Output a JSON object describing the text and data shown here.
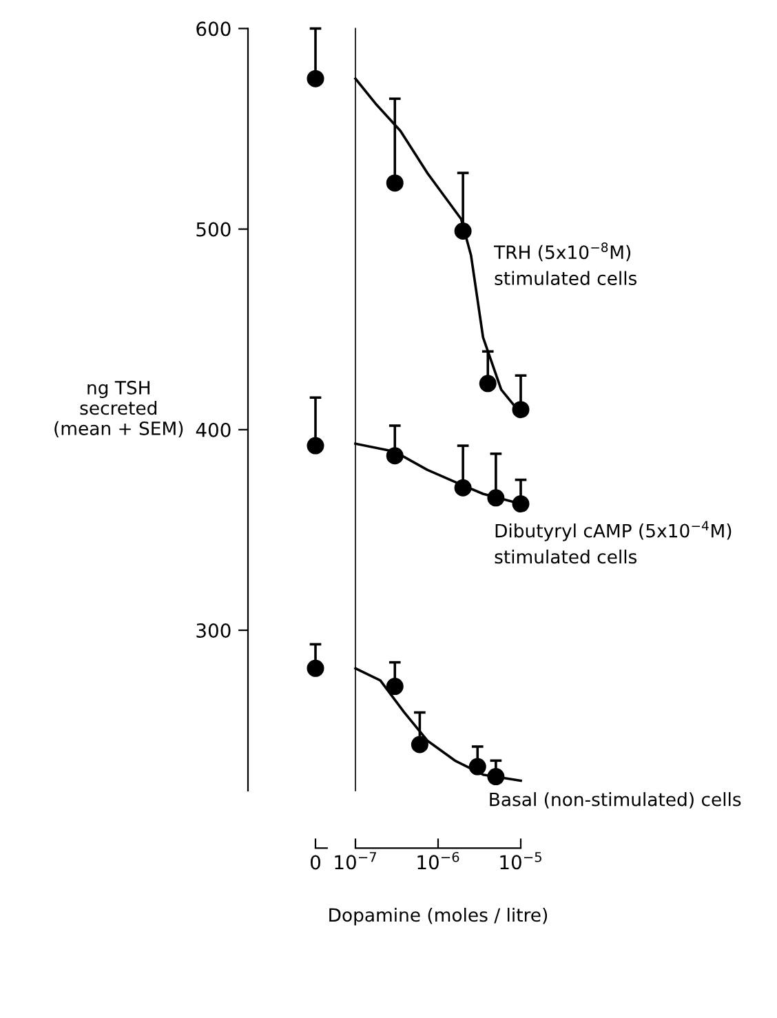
{
  "chart_data": [
    {
      "type": "scatter",
      "categories": [
        "0"
      ],
      "ylabel": "ng TSH\nsecreted\n(mean + SEM)",
      "ylim": [
        220,
        600
      ],
      "yticks": [
        300,
        400,
        500,
        600
      ],
      "marker": "circle",
      "series": [
        {
          "color": "#000000",
          "values": [
            575
          ],
          "errors": [
            [
              575,
              600
            ]
          ]
        },
        {
          "color": "#000000",
          "values": [
            392
          ],
          "errors": [
            [
              392,
              416
            ]
          ]
        },
        {
          "color": "#000000",
          "values": [
            281
          ],
          "errors": [
            [
              281,
              293
            ]
          ]
        }
      ]
    },
    {
      "type": "scatter",
      "xlabel": "Dopamine (moles / litre)",
      "log": "x",
      "xlim": [
        1e-07,
        1e-05
      ],
      "xticks": [
        {
          "value": 1e-07,
          "label": "10$^{−7}$"
        },
        {
          "value": 1e-06,
          "label": "10$^{−6}$"
        },
        {
          "value": 1e-05,
          "label": "10$^{−5}$"
        }
      ],
      "ylim": [
        220,
        600
      ],
      "yticks": [
        300,
        400,
        500,
        600
      ],
      "tick_labels": "x",
      "marker": "circle",
      "series": [
        {
          "color": "#000000",
          "x": [
            3e-07,
            2e-06,
            4e-06,
            1e-05
          ],
          "values": [
            523,
            499,
            423,
            410
          ],
          "errors": [
            [
              523,
              565
            ],
            [
              499,
              528
            ],
            [
              423,
              439
            ],
            [
              410,
              427
            ]
          ]
        },
        {
          "type": "line",
          "name": "TRH (5x10$^{−8}$M)\nstimulated cells",
          "color": "#000000",
          "marker": "none",
          "x": [
            1e-07,
            1.8e-07,
            3.5e-07,
            7.4e-07,
            1.9e-06,
            2.5e-06,
            3.5e-06,
            5.8e-06,
            1e-05
          ],
          "values": [
            575,
            562,
            549,
            528,
            505,
            487,
            446,
            420,
            408
          ]
        },
        {
          "color": "#000000",
          "x": [
            3e-07,
            2e-06,
            5e-06,
            1e-05
          ],
          "values": [
            387,
            371,
            366,
            363
          ],
          "errors": [
            [
              387,
              402
            ],
            [
              371,
              392
            ],
            [
              366,
              388
            ],
            [
              363,
              375
            ]
          ]
        },
        {
          "type": "line",
          "name": "Dibutyryl cAMP (5x10$^{−4}$M)\nstimulated cells",
          "color": "#000000",
          "marker": "none",
          "x": [
            1e-07,
            3e-07,
            7.4e-07,
            1.8e-06,
            3.5e-06,
            1e-05
          ],
          "values": [
            393,
            389,
            380,
            373,
            368,
            363
          ]
        },
        {
          "color": "#000000",
          "x": [
            3e-07,
            6e-07,
            3e-06,
            5e-06
          ],
          "values": [
            272,
            243,
            232,
            227
          ],
          "errors": [
            [
              272,
              284
            ],
            [
              243,
              259
            ],
            [
              232,
              242
            ],
            [
              227,
              235
            ]
          ]
        },
        {
          "type": "line",
          "name": "Basal (non-stimulated) cells",
          "color": "#000000",
          "marker": "none",
          "x": [
            1e-07,
            2e-07,
            3.9e-07,
            7.4e-07,
            1.6e-06,
            3.5e-06,
            1e-05
          ],
          "values": [
            281,
            275,
            259,
            245,
            235,
            228,
            225
          ]
        }
      ]
    }
  ]
}
